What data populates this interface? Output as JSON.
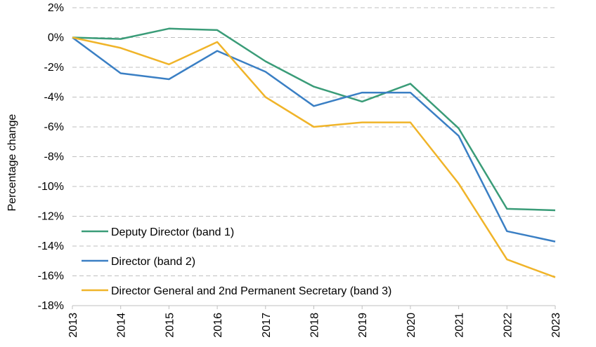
{
  "chart_data": {
    "type": "line",
    "ylabel": "Percentage change",
    "xlabel": "",
    "x": [
      "2013",
      "2014",
      "2015",
      "2016",
      "2017",
      "2018",
      "2019",
      "2020",
      "2021",
      "2022",
      "2023"
    ],
    "ylim": [
      -18,
      2
    ],
    "yticks": [
      2,
      0,
      -2,
      -4,
      -6,
      -8,
      -10,
      -12,
      -14,
      -16,
      -18
    ],
    "ytick_labels": [
      "2%",
      "0%",
      "-2%",
      "-4%",
      "-6%",
      "-8%",
      "-10%",
      "-12%",
      "-14%",
      "-16%",
      "-18%"
    ],
    "grid": true,
    "legend_position": "bottom-left",
    "series": [
      {
        "name": "Deputy Director (band 1)",
        "color": "#3a9c78",
        "values": [
          0,
          -0.1,
          0.6,
          0.5,
          -1.6,
          -3.3,
          -4.3,
          -3.1,
          -6.1,
          -11.5,
          -11.6
        ]
      },
      {
        "name": "Director (band 2)",
        "color": "#3a7fc4",
        "values": [
          0,
          -2.4,
          -2.8,
          -0.9,
          -2.3,
          -4.6,
          -3.7,
          -3.7,
          -6.6,
          -13.0,
          -13.7
        ]
      },
      {
        "name": "Director General and 2nd Permanent Secretary (band 3)",
        "color": "#f0b429",
        "values": [
          0,
          -0.7,
          -1.8,
          -0.3,
          -4.0,
          -6.0,
          -5.7,
          -5.7,
          -9.8,
          -14.9,
          -16.1
        ]
      }
    ]
  }
}
